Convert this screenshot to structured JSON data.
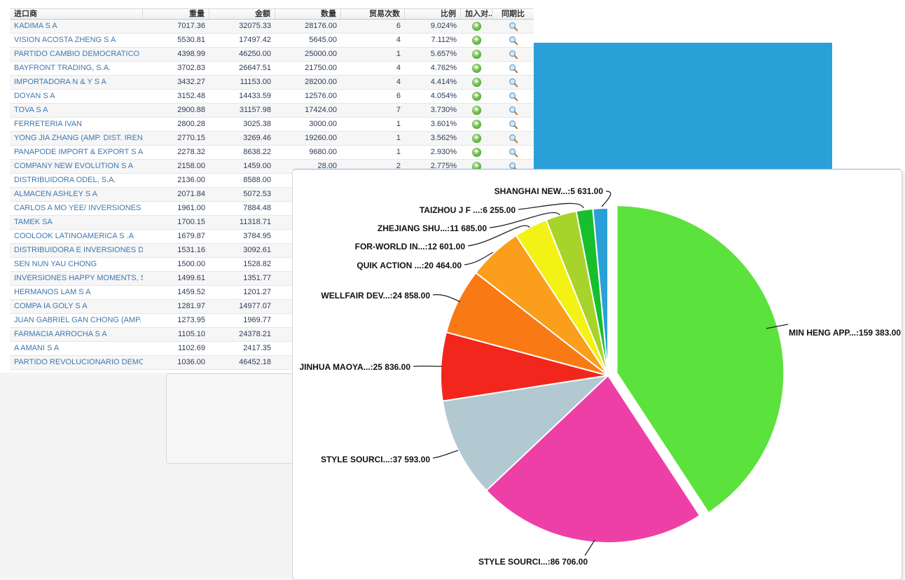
{
  "table": {
    "columns": [
      {
        "key": "name",
        "label": "进口商"
      },
      {
        "key": "weight",
        "label": "重量"
      },
      {
        "key": "amount",
        "label": "金额"
      },
      {
        "key": "quantity",
        "label": "数量"
      },
      {
        "key": "trades",
        "label": "贸易次数"
      },
      {
        "key": "ratio",
        "label": "比例"
      },
      {
        "key": "add",
        "label": "加入对..."
      },
      {
        "key": "yoy",
        "label": "同期比"
      }
    ],
    "icons": {
      "add": "green-plus-circle",
      "yoy": "magnifier"
    },
    "rows": [
      {
        "name": "KADIMA S A",
        "weight": "7017.36",
        "amount": "32075.33",
        "quantity": "28176.00",
        "trades": "6",
        "ratio": "9.024%"
      },
      {
        "name": "VISION ACOSTA ZHENG S A",
        "weight": "5530.81",
        "amount": "17497.42",
        "quantity": "5645.00",
        "trades": "4",
        "ratio": "7.112%"
      },
      {
        "name": "PARTIDO CAMBIO DEMOCRATICO",
        "weight": "4398.99",
        "amount": "46250.00",
        "quantity": "25000.00",
        "trades": "1",
        "ratio": "5.657%"
      },
      {
        "name": "BAYFRONT TRADING, S.A.",
        "weight": "3702.83",
        "amount": "26647.51",
        "quantity": "21750.00",
        "trades": "4",
        "ratio": "4.762%"
      },
      {
        "name": "IMPORTADORA N & Y S A",
        "weight": "3432.27",
        "amount": "11153.00",
        "quantity": "28200.00",
        "trades": "4",
        "ratio": "4.414%"
      },
      {
        "name": "DOYAN S A",
        "weight": "3152.48",
        "amount": "14433.59",
        "quantity": "12576.00",
        "trades": "6",
        "ratio": "4.054%"
      },
      {
        "name": "TOVA S A",
        "weight": "2900.88",
        "amount": "31157.98",
        "quantity": "17424.00",
        "trades": "7",
        "ratio": "3.730%"
      },
      {
        "name": "FERRETERIA IVAN",
        "weight": "2800.28",
        "amount": "3025.38",
        "quantity": "3000.00",
        "trades": "1",
        "ratio": "3.601%"
      },
      {
        "name": "YONG JIA ZHANG (AMP. DIST. IRENE, S...",
        "weight": "2770.15",
        "amount": "3269.46",
        "quantity": "19260.00",
        "trades": "1",
        "ratio": "3.562%"
      },
      {
        "name": "PANAPODE IMPORT & EXPORT S A",
        "weight": "2278.32",
        "amount": "8638.22",
        "quantity": "9680.00",
        "trades": "1",
        "ratio": "2.930%"
      },
      {
        "name": "COMPANY NEW EVOLUTION S A",
        "weight": "2158.00",
        "amount": "1459.00",
        "quantity": "28.00",
        "trades": "2",
        "ratio": "2.775%"
      },
      {
        "name": "DISTRIBUIDORA ODEL, S.A.",
        "weight": "2136.00",
        "amount": "8588.00",
        "quantity": "",
        "trades": "",
        "ratio": ""
      },
      {
        "name": "ALMACEN ASHLEY S A",
        "weight": "2071.84",
        "amount": "5072.53",
        "quantity": "",
        "trades": "",
        "ratio": ""
      },
      {
        "name": "CARLOS A MO YEE/ INVERSIONES LA SI...",
        "weight": "1961.00",
        "amount": "7884.48",
        "quantity": "",
        "trades": "",
        "ratio": ""
      },
      {
        "name": "TAMEK SA",
        "weight": "1700.15",
        "amount": "11318.71",
        "quantity": "",
        "trades": "",
        "ratio": ""
      },
      {
        "name": "COOLOOK LATINOAMERICA S .A",
        "weight": "1679.87",
        "amount": "3784.95",
        "quantity": "",
        "trades": "",
        "ratio": ""
      },
      {
        "name": "DISTRIBUIDORA E INVERSIONES D R K ...",
        "weight": "1531.16",
        "amount": "3092.61",
        "quantity": "",
        "trades": "",
        "ratio": ""
      },
      {
        "name": "SEN NUN YAU CHONG",
        "weight": "1500.00",
        "amount": "1528.82",
        "quantity": "",
        "trades": "",
        "ratio": ""
      },
      {
        "name": "INVERSIONES HAPPY MOMENTS, SA",
        "weight": "1499.61",
        "amount": "1351.77",
        "quantity": "",
        "trades": "",
        "ratio": ""
      },
      {
        "name": "HERMANOS LAM S A",
        "weight": "1459.52",
        "amount": "1201.27",
        "quantity": "",
        "trades": "",
        "ratio": ""
      },
      {
        "name": "COMPA IA GOLY S A",
        "weight": "1281.97",
        "amount": "14977.07",
        "quantity": "",
        "trades": "",
        "ratio": ""
      },
      {
        "name": "JUAN GABRIEL GAN CHONG (AMP. MAYO...",
        "weight": "1273.95",
        "amount": "1969.77",
        "quantity": "",
        "trades": "",
        "ratio": ""
      },
      {
        "name": "FARMACIA ARROCHA S A",
        "weight": "1105.10",
        "amount": "24378.21",
        "quantity": "",
        "trades": "",
        "ratio": ""
      },
      {
        "name": "A AMANI S A",
        "weight": "1102.69",
        "amount": "2417.35",
        "quantity": "",
        "trades": "",
        "ratio": ""
      },
      {
        "name": "PARTIDO REVOLUCIONARIO DEMOCRAT...",
        "weight": "1036.00",
        "amount": "46452.18",
        "quantity": "",
        "trades": "",
        "ratio": ""
      }
    ]
  },
  "chart_data": {
    "type": "pie",
    "title": "",
    "legend_position": "none",
    "start_angle_deg": 0,
    "direction": "clockwise",
    "total": 391012,
    "exploded_slice": "MIN HENG APP...",
    "slices": [
      {
        "label": "MIN HENG APP...",
        "display": "MIN HENG APP...:159 383.00",
        "value": 159383,
        "color": "#5CE23C",
        "exploded": true
      },
      {
        "label": "STYLE SOURCI...",
        "display": "STYLE SOURCI...:86 706.00",
        "value": 86706,
        "color": "#EE3FA7",
        "exploded": false
      },
      {
        "label": "STYLE SOURCI...",
        "display": "STYLE SOURCI...:37 593.00",
        "value": 37593,
        "color": "#B2C9D2",
        "exploded": false
      },
      {
        "label": "JINHUA MAOYA...",
        "display": "JINHUA MAOYA...:25 836.00",
        "value": 25836,
        "color": "#F3261D",
        "exploded": false
      },
      {
        "label": "WELLFAIR DEV...",
        "display": "WELLFAIR DEV...:24 858.00",
        "value": 24858,
        "color": "#F97A15",
        "exploded": false
      },
      {
        "label": "QUIK ACTION ...",
        "display": "QUIK ACTION ...:20 464.00",
        "value": 20464,
        "color": "#FA9E1B",
        "exploded": false
      },
      {
        "label": "FOR-WORLD IN...",
        "display": "FOR-WORLD IN...:12 601.00",
        "value": 12601,
        "color": "#F2F214",
        "exploded": false
      },
      {
        "label": "ZHEJIANG SHU...",
        "display": "ZHEJIANG SHU...:11 685.00",
        "value": 11685,
        "color": "#A8D32B",
        "exploded": false
      },
      {
        "label": "TAIZHOU J F ...",
        "display": "TAIZHOU J F ...:6 255.00",
        "value": 6255,
        "color": "#17BF2D",
        "exploded": false
      },
      {
        "label": "SHANGHAI NEW...",
        "display": "SHANGHAI NEW...:5 631.00",
        "value": 5631,
        "color": "#2B9FD8",
        "exploded": false
      }
    ]
  },
  "overlay": {
    "blue_rect_color": "#29A0D8"
  }
}
